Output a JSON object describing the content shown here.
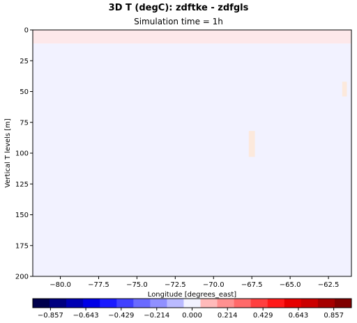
{
  "chart_data": {
    "type": "heatmap",
    "title": "3D T (degC): zdftke - zdfgls",
    "subtitle": "Simulation time = 1h",
    "xlabel": "Longitude [degrees_east]",
    "ylabel": "Vertical T levels [m]",
    "xlim": [
      -81.8,
      -61.0
    ],
    "ylim": [
      200,
      0
    ],
    "xticks": [
      -80.0,
      -77.5,
      -75.0,
      -72.5,
      -70.0,
      -67.5,
      -65.0,
      -62.5
    ],
    "xtick_labels": [
      "−80.0",
      "−77.5",
      "−75.0",
      "−72.5",
      "−70.0",
      "−67.5",
      "−65.0",
      "−62.5"
    ],
    "yticks": [
      0,
      25,
      50,
      75,
      100,
      125,
      150,
      175,
      200
    ],
    "ytick_labels": [
      "0",
      "25",
      "50",
      "75",
      "100",
      "125",
      "150",
      "175",
      "200"
    ],
    "colorbar": {
      "colormap": "seismic",
      "vmin": -0.964,
      "vmax": 0.964,
      "ticks": [
        -0.857,
        -0.643,
        -0.429,
        -0.214,
        0.0,
        0.214,
        0.429,
        0.643,
        0.857
      ],
      "tick_labels": [
        "−0.857",
        "−0.643",
        "−0.429",
        "−0.214",
        "0.000",
        "0.214",
        "0.429",
        "0.643",
        "0.857"
      ],
      "levels": 19,
      "colors": [
        "#00004c",
        "#000080",
        "#0000b3",
        "#0000e6",
        "#1a1aff",
        "#4040ff",
        "#6a6aff",
        "#9090ff",
        "#babaff",
        "#f2f2ff",
        "#ffbaba",
        "#ff9090",
        "#ff6a6a",
        "#ff4040",
        "#ff1a1a",
        "#e60000",
        "#cc0000",
        "#a60000",
        "#800000"
      ]
    },
    "field_description_value": 0.0,
    "anomalies": [
      {
        "lon_range": [
          -81.8,
          -61.0
        ],
        "depth_range": [
          0,
          11
        ],
        "value": 0.03
      },
      {
        "lon_range": [
          -67.7,
          -67.3
        ],
        "depth_range": [
          82,
          103
        ],
        "value": 0.05
      },
      {
        "lon_range": [
          -61.6,
          -61.3
        ],
        "depth_range": [
          42,
          54
        ],
        "value": 0.05
      }
    ],
    "colors": {
      "background_field": "#f2f2ff",
      "surface_band": "#fde8ea",
      "frame": "#000000"
    }
  }
}
